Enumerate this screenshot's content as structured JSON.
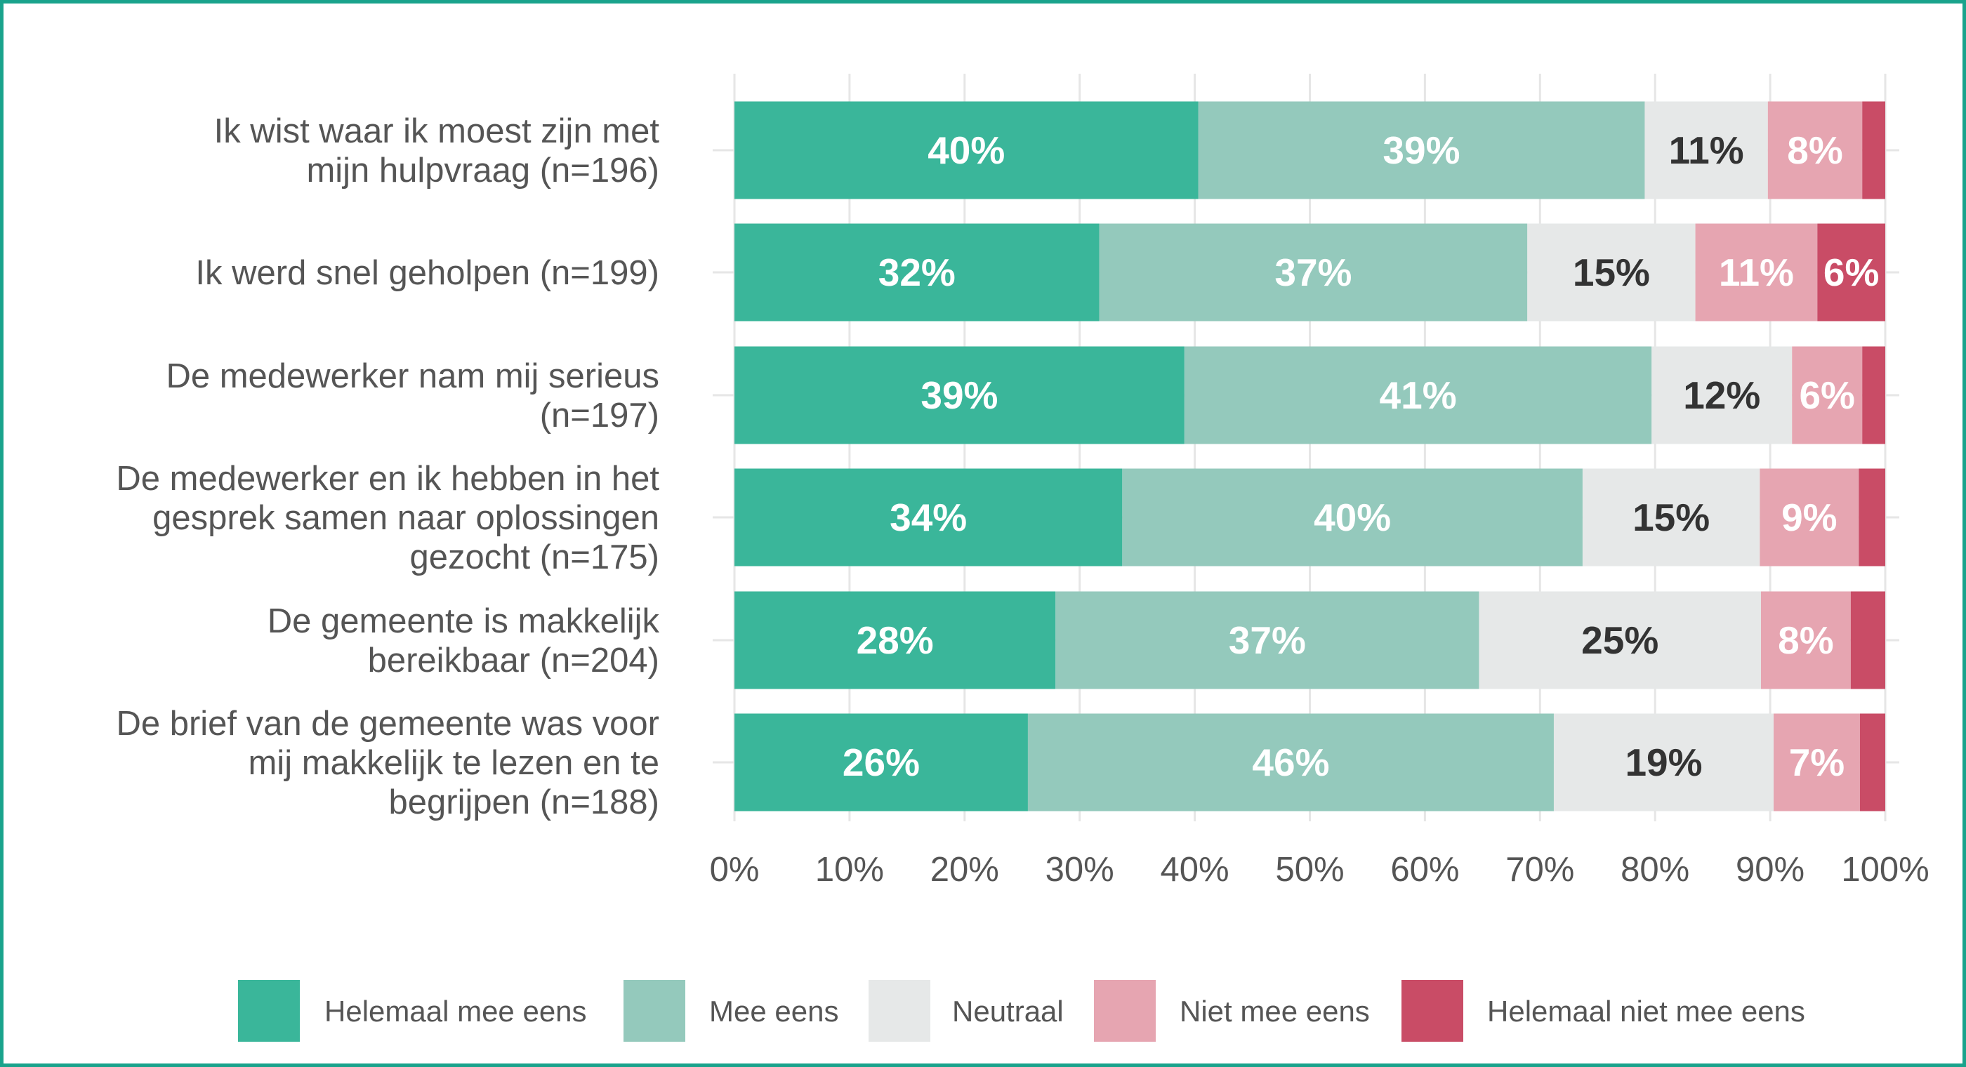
{
  "chart_data": {
    "type": "bar",
    "orientation": "horizontal",
    "stacked": true,
    "categories": [
      [
        "Ik wist waar ik moest zijn met",
        "mijn hulpvraag (n=196)"
      ],
      [
        "Ik werd snel geholpen (n=199)"
      ],
      [
        "De medewerker nam mij serieus",
        "(n=197)"
      ],
      [
        "De medewerker en ik hebben in het",
        "gesprek samen naar oplossingen",
        "gezocht (n=175)"
      ],
      [
        "De gemeente is makkelijk",
        "bereikbaar (n=204)"
      ],
      [
        "De brief van de gemeente was voor",
        "mij makkelijk te lezen en te",
        "begrijpen (n=188)"
      ]
    ],
    "series": [
      {
        "name": "Helemaal mee eens",
        "color": "#3ab69a",
        "label_color": "#ffffff",
        "values": [
          40.3,
          31.7,
          39.1,
          33.7,
          27.9,
          25.5
        ],
        "labels": [
          "40%",
          "32%",
          "39%",
          "34%",
          "28%",
          "26%"
        ]
      },
      {
        "name": "Mee eens",
        "color": "#94c9bc",
        "label_color": "#ffffff",
        "values": [
          38.8,
          37.2,
          40.6,
          40.0,
          36.8,
          45.7
        ],
        "labels": [
          "39%",
          "37%",
          "41%",
          "40%",
          "37%",
          "46%"
        ]
      },
      {
        "name": "Neutraal",
        "color": "#e6e8e8",
        "label_color": "#333333",
        "values": [
          10.7,
          14.6,
          12.2,
          15.4,
          24.5,
          19.1
        ],
        "labels": [
          "11%",
          "15%",
          "12%",
          "15%",
          "25%",
          "19%"
        ]
      },
      {
        "name": "Niet mee eens",
        "color": "#e6a5b1",
        "label_color": "#ffffff",
        "values": [
          8.2,
          10.6,
          6.1,
          8.6,
          7.8,
          7.5
        ],
        "labels": [
          "8%",
          "11%",
          "6%",
          "9%",
          "8%",
          "7%"
        ]
      },
      {
        "name": "Helemaal niet mee eens",
        "color": "#c94c66",
        "label_color": "#ffffff",
        "values": [
          2.0,
          5.9,
          2.0,
          2.3,
          3.0,
          2.2
        ],
        "labels": [
          "",
          "6%",
          "",
          "",
          "",
          ""
        ]
      }
    ],
    "xlim": [
      0,
      100
    ],
    "xticks": [
      "0%",
      "10%",
      "20%",
      "30%",
      "40%",
      "50%",
      "60%",
      "70%",
      "80%",
      "90%",
      "100%"
    ],
    "grid": true,
    "legend_position": "bottom"
  }
}
